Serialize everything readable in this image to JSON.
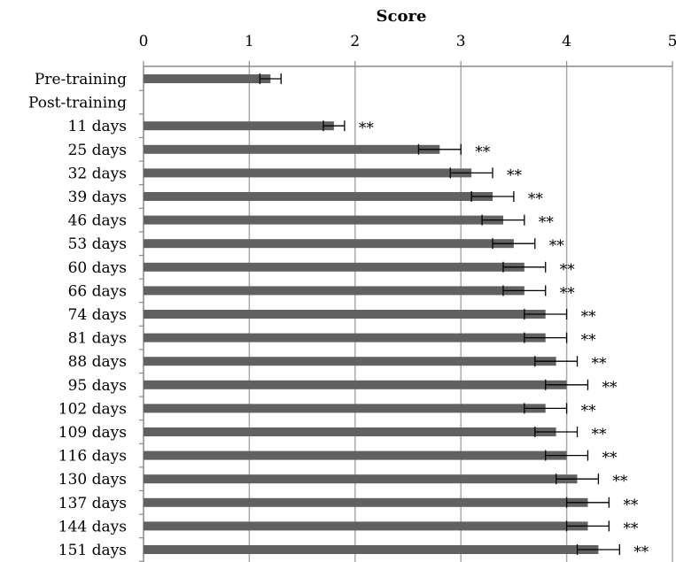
{
  "chart_data": {
    "type": "bar",
    "orientation": "horizontal",
    "xlabel": "Score",
    "xlim": [
      0,
      5
    ],
    "xticks": [
      "0",
      "1",
      "2",
      "3",
      "4",
      "5"
    ],
    "grid": true,
    "categories": [
      "Pre-training",
      "Post-training",
      "11 days",
      "25 days",
      "32 days",
      "39 days",
      "46 days",
      "53 days",
      "60 days",
      "66 days",
      "74 days",
      "81 days",
      "88 days",
      "95 days",
      "102 days",
      "109 days",
      "116 days",
      "130 days",
      "137 days",
      "144 days",
      "151 days"
    ],
    "values": [
      1.2,
      null,
      1.8,
      2.8,
      3.1,
      3.3,
      3.4,
      3.5,
      3.6,
      3.6,
      3.8,
      3.8,
      3.9,
      4.0,
      3.8,
      3.9,
      4.0,
      4.1,
      4.2,
      4.2,
      4.3
    ],
    "errors": [
      0.1,
      null,
      0.1,
      0.2,
      0.2,
      0.2,
      0.2,
      0.2,
      0.2,
      0.2,
      0.2,
      0.2,
      0.2,
      0.2,
      0.2,
      0.2,
      0.2,
      0.2,
      0.2,
      0.2,
      0.2
    ],
    "annotations": [
      "",
      "",
      "**",
      "**",
      "**",
      "**",
      "**",
      "**",
      "**",
      "**",
      "**",
      "**",
      "**",
      "**",
      "**",
      "**",
      "**",
      "**",
      "**",
      "**",
      "**"
    ]
  }
}
